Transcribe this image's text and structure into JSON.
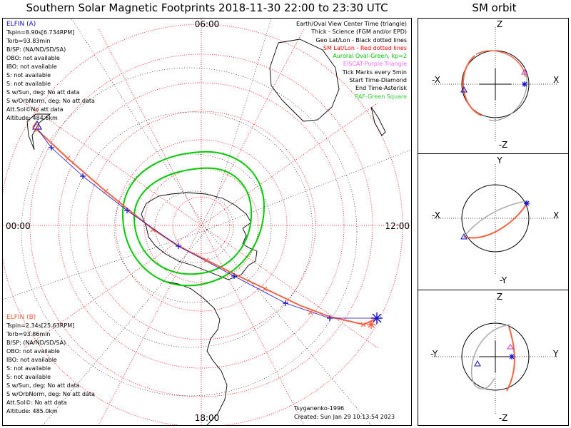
{
  "header": {
    "title": "Southern Solar Magnetic Footprints 2018-11-30 22:00 to 23:30 UTC",
    "orbit_title": "SM orbit"
  },
  "elfin_a": {
    "label": "ELFIN (A)",
    "color": "#1010d0",
    "lines": [
      "Tspin=8.90s[6.734RPM]",
      "Torb=93.83min",
      "B/SP: (NA/ND/SD/SA)",
      "OBO: not available",
      "IBO: not available",
      "S: not available",
      "S: not available",
      "S w/Sun, deg: No att data",
      "S w/OrbNorm, deg: No att data",
      "Att.Sol©No att data",
      "Altitude: 484.6km"
    ]
  },
  "elfin_b": {
    "label": "ELFIN (B)",
    "color": "#ff6040",
    "lines": [
      "Tspin=2.34s[25.63RPM]",
      "Torb=93.86min",
      "B/SP: (NA/ND/SD/SA)",
      "OBO: not available",
      "IBO: not available",
      "S: not available",
      "S: not available",
      "S w/Sun, deg: No att data",
      "S w/OrbNorm, deg: No att data",
      "Att.Sol©: No att data",
      "Altitude: 485.0km"
    ]
  },
  "legend": [
    {
      "text": "Earth/Oval View Center Time (triangle)",
      "color": "#000000"
    },
    {
      "text": "Thick - Science (FGM and/or EPD)",
      "color": "#000000"
    },
    {
      "text": "Geo Lat/Lon - Black dotted lines",
      "color": "#000000"
    },
    {
      "text": "SM Lat/Lon - Red dotted lines",
      "color": "#ff0000"
    },
    {
      "text": "Auroral Oval-Green, kp=2",
      "color": "#00c000"
    },
    {
      "text": "EISCAT-Purple Triangle",
      "color": "#ff66ff"
    },
    {
      "text": "Tick Marks every 5min",
      "color": "#000000"
    },
    {
      "text": "Start Time-Diamond",
      "color": "#000000"
    },
    {
      "text": "End Time-Asterisk",
      "color": "#000000"
    },
    {
      "text": "PAF-Green Square",
      "color": "#33cc33"
    }
  ],
  "footer": {
    "model": "Tsyganenko-1996",
    "created": "Created: Sun Jan 29 10:13:54 2023"
  },
  "map_labels": {
    "top": "06:00",
    "left": "00:00",
    "right": "12:00",
    "bottom": "18:00"
  },
  "orbit_panels": [
    {
      "top": "Z",
      "bottom": "-Z",
      "left": "-X",
      "right": "X"
    },
    {
      "top": "Y",
      "bottom": "-Y",
      "left": "-X",
      "right": "X"
    },
    {
      "top": "Z",
      "bottom": "-Z",
      "left": "-Y",
      "right": "Y"
    }
  ],
  "chart_data": {
    "type": "map",
    "series": [
      {
        "name": "ELFIN (A)",
        "color": "#1010d0"
      },
      {
        "name": "ELFIN (B)",
        "color": "#ff6040"
      }
    ],
    "colors": {
      "sm_grid": "#ff0000",
      "geo_grid": "#000000",
      "auroral_oval": "#00cc00",
      "eisat": "#ff66ff"
    }
  }
}
